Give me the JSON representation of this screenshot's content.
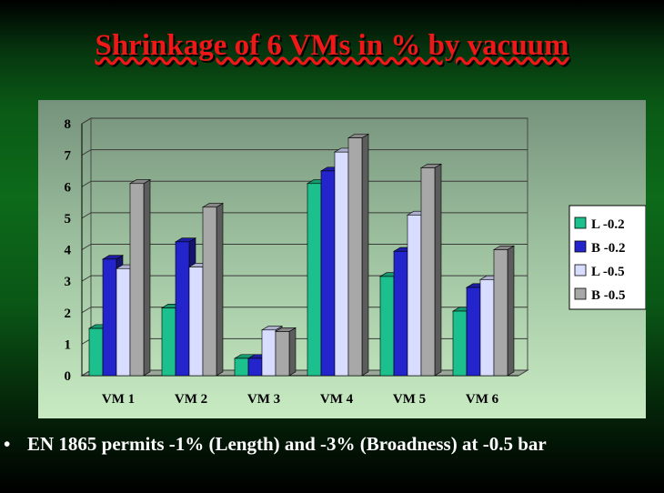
{
  "slide": {
    "title": "Shrinkage of 6 VMs in % by vacuum",
    "bullet": "EN 1865 permits -1% (Length) and -3% (Broadness) at -0.5 bar"
  },
  "chart_data": {
    "type": "bar",
    "categories": [
      "VM 1",
      "VM 2",
      "VM 3",
      "VM 4",
      "VM 5",
      "VM 6"
    ],
    "series": [
      {
        "name": "L -0.2",
        "color": "#1cc08c",
        "values": [
          1.5,
          2.15,
          0.55,
          6.1,
          3.15,
          2.05
        ]
      },
      {
        "name": "B -0.2",
        "color": "#2424cc",
        "values": [
          3.7,
          4.25,
          0.55,
          6.5,
          3.95,
          2.8
        ]
      },
      {
        "name": "L -0.5",
        "color": "#d8dcff",
        "values": [
          3.4,
          3.45,
          1.45,
          7.1,
          5.1,
          3.05
        ]
      },
      {
        "name": "B -0.5",
        "color": "#a8a8a8",
        "values": [
          6.1,
          5.35,
          1.4,
          7.55,
          6.6,
          4.0
        ]
      }
    ],
    "yticks": [
      0,
      1,
      2,
      3,
      4,
      5,
      6,
      7,
      8
    ],
    "ylim": [
      0,
      8
    ],
    "title": "",
    "xlabel": "",
    "ylabel": "",
    "legend": "right",
    "grid": true,
    "style": "3d"
  }
}
